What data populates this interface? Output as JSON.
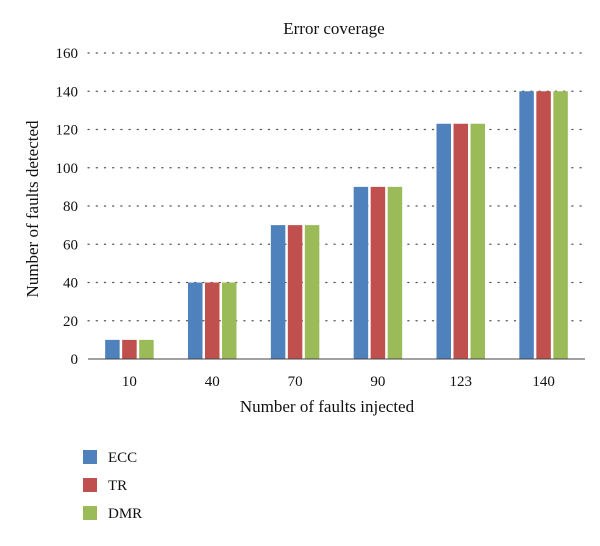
{
  "chart_data": {
    "type": "bar",
    "title": "Error coverage",
    "xlabel": "Number of faults injected",
    "ylabel": "Number of faults detected",
    "categories": [
      "10",
      "40",
      "70",
      "90",
      "123",
      "140"
    ],
    "series": [
      {
        "name": "ECC",
        "values": [
          10,
          40,
          70,
          90,
          123,
          140
        ],
        "color": "#4F81BD"
      },
      {
        "name": "TR",
        "values": [
          10,
          40,
          70,
          90,
          123,
          140
        ],
        "color": "#C0504D"
      },
      {
        "name": "DMR",
        "values": [
          10,
          40,
          70,
          90,
          123,
          140
        ],
        "color": "#9BBB59"
      }
    ],
    "ylim": [
      0,
      160
    ],
    "yticks": [
      "0",
      "20",
      "40",
      "60",
      "80",
      "100",
      "120",
      "140",
      "160"
    ],
    "grid": true,
    "legend_position": "bottom-left"
  }
}
